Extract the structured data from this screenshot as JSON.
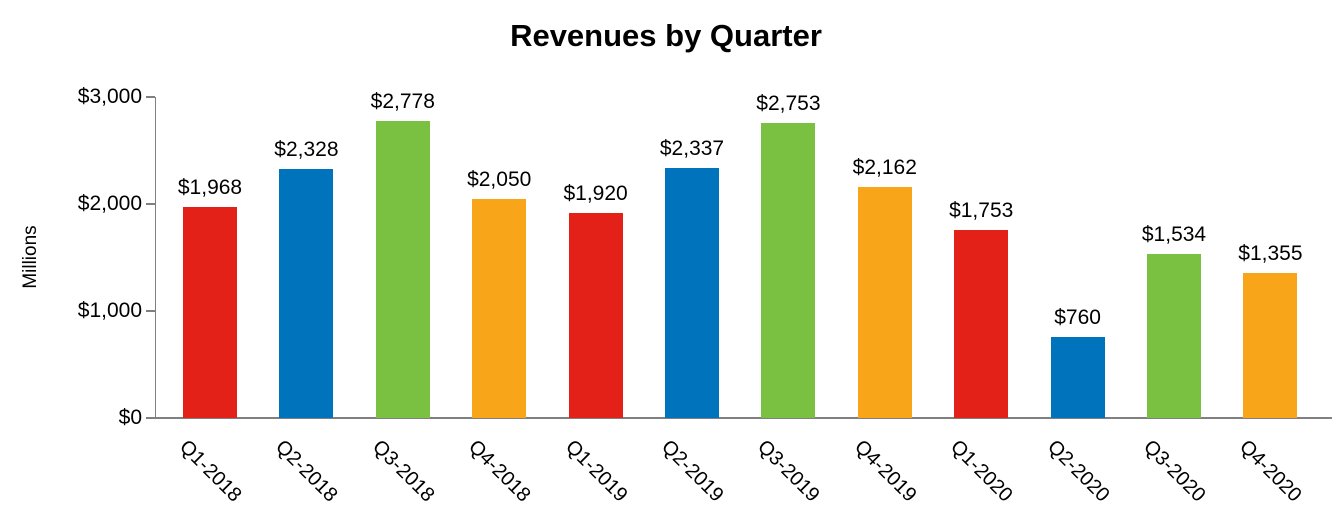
{
  "chart_data": {
    "type": "bar",
    "title": "Revenues by Quarter",
    "xlabel": "",
    "ylabel": "Millions",
    "categories": [
      "Q1-2018",
      "Q2-2018",
      "Q3-2018",
      "Q4-2018",
      "Q1-2019",
      "Q2-2019",
      "Q3-2019",
      "Q4-2019",
      "Q1-2020",
      "Q2-2020",
      "Q3-2020",
      "Q4-2020"
    ],
    "values": [
      1968,
      2328,
      2778,
      2050,
      1920,
      2337,
      2753,
      2162,
      1753,
      760,
      1534,
      1355
    ],
    "value_labels": [
      "$1,968",
      "$2,328",
      "$2,778",
      "$2,050",
      "$1,920",
      "$2,337",
      "$2,753",
      "$2,162",
      "$1,753",
      "$760",
      "$1,534",
      "$1,355"
    ],
    "ylim": [
      0,
      3000
    ],
    "y_ticks": [
      {
        "value": 0,
        "label": "$0"
      },
      {
        "value": 1000,
        "label": "$1,000"
      },
      {
        "value": 2000,
        "label": "$2,000"
      },
      {
        "value": 3000,
        "label": "$3,000"
      }
    ],
    "bar_colors": [
      "#e32119",
      "#0073bd",
      "#7ac142",
      "#f9a51a"
    ],
    "axis_color": "#808080",
    "text_color": "#000000",
    "grid": false,
    "legend": "none",
    "x_label_rotation_deg": 45
  }
}
